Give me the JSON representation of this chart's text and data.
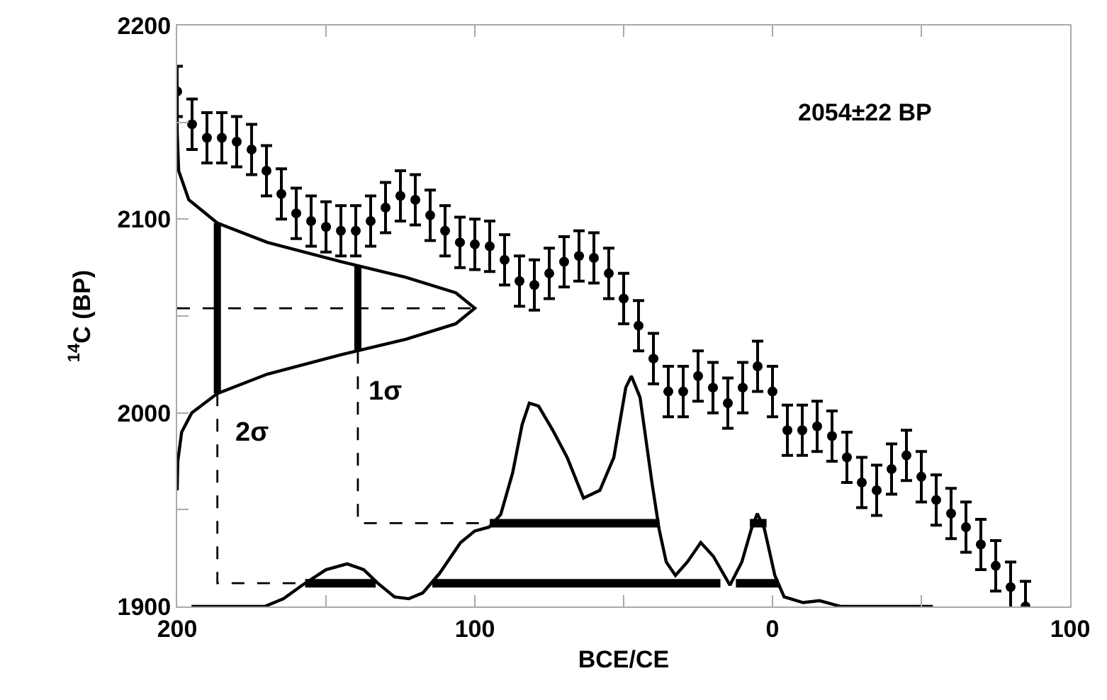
{
  "chart_data": {
    "type": "line",
    "xlabel": "BCE/CE",
    "ylabel": "$^{14}$C (BP)",
    "xlim": [
      -200,
      100
    ],
    "xticks": [
      {
        "value": -200,
        "label": "200"
      },
      {
        "value": -150,
        "label": null
      },
      {
        "value": -100,
        "label": "100"
      },
      {
        "value": -50,
        "label": null
      },
      0,
      {
        "value": 50,
        "label": null
      },
      100
    ],
    "ylim": [
      1900,
      2200
    ],
    "yticks": [
      1900,
      {
        "value": 1950,
        "label": null
      },
      2000,
      {
        "value": 2050,
        "label": null
      },
      2100,
      {
        "value": 2150,
        "label": null
      },
      2200
    ],
    "grid": false,
    "annotations": [
      "2054±22 BP",
      "1σ",
      "2σ"
    ],
    "series": [
      {
        "type": "scatter",
        "marker": "circle",
        "color": "#000000",
        "x": [
          -200,
          -195,
          -190,
          -185,
          -180,
          -175,
          -170,
          -165,
          -160,
          -155,
          -150,
          -145,
          -140,
          -135,
          -130,
          -125,
          -120,
          -115,
          -110,
          -105,
          -100,
          -95,
          -90,
          -85,
          -80,
          -75,
          -70,
          -65,
          -60,
          -55,
          -50,
          -45,
          -40,
          -35,
          -30,
          -25,
          -20,
          -15,
          -10,
          -5,
          0,
          5,
          10,
          15,
          20,
          25,
          30,
          35,
          40,
          45,
          50,
          55,
          60,
          65,
          70,
          75,
          80,
          85
        ],
        "values": [
          2166,
          2149,
          2142,
          2142,
          2140,
          2136,
          2125,
          2113,
          2103,
          2099,
          2096,
          2094,
          2094,
          2099,
          2106,
          2112,
          2110,
          2102,
          2094,
          2088,
          2087,
          2086,
          2079,
          2068,
          2066,
          2072,
          2078,
          2081,
          2080,
          2072,
          2059,
          2045,
          2028,
          2011,
          2011,
          2019,
          2013,
          2005,
          2013,
          2024,
          2011,
          1991,
          1991,
          1993,
          1988,
          1977,
          1964,
          1960,
          1971,
          1978,
          1967,
          1955,
          1948,
          1941,
          1932,
          1921,
          1910,
          1900
        ],
        "errors": [
          13,
          13,
          13,
          13,
          13,
          13,
          13,
          13,
          13,
          13,
          13,
          13,
          13,
          13,
          13,
          13,
          13,
          13,
          13,
          13,
          13,
          13,
          13,
          13,
          13,
          13,
          13,
          13,
          13,
          13,
          13,
          13,
          13,
          13,
          13,
          13,
          13,
          13,
          13,
          13,
          13,
          13,
          13,
          13,
          13,
          13,
          13,
          13,
          13,
          13,
          13,
          13,
          13,
          13,
          13,
          13,
          13,
          13
        ]
      },
      {
        "line_style": "solid",
        "color": "#000000",
        "x": [
          -200,
          -199.8,
          -198.5,
          -195.1,
          -186.5,
          -169.7,
          -144.9,
          -123.2,
          -106.4,
          -100,
          -106.4,
          -123.2,
          -144.9,
          -169.7,
          -186.5,
          -196.1,
          -199.5,
          -200,
          -200
        ],
        "values": [
          1960,
          1975,
          1990,
          2000,
          2010,
          2020,
          2030,
          2038,
          2046,
          2054,
          2062,
          2070,
          2078,
          2088,
          2098,
          2110,
          2125,
          2145,
          2165
        ]
      },
      {
        "line_style": "solid",
        "color": "#000000",
        "x": [
          -195.2,
          -170.6,
          -164.3,
          -158,
          -150,
          -142.9,
          -137.3,
          -132.6,
          -127,
          -122.2,
          -117.5,
          -111.9,
          -104.8,
          -100,
          -95.2,
          -91.3,
          -87.3,
          -84.1,
          -81.7,
          -78.6,
          -73.8,
          -69,
          -63.5,
          -58,
          -53.3,
          -49.3,
          -47.4,
          -44.5,
          -40.5,
          -38.1,
          -35.7,
          -32.6,
          -28.6,
          -24.1,
          -19.9,
          -14.3,
          -10.3,
          -7.1,
          -5.1,
          -2.7,
          0.8,
          3.9,
          10.3,
          15.8,
          23,
          53.9
        ],
        "values": [
          1900,
          1900,
          1904,
          1911,
          1919,
          1922,
          1919,
          1912,
          1905,
          1904,
          1907,
          1917,
          1933,
          1939,
          1941,
          1947.5,
          1969,
          1994,
          2005,
          2003.5,
          1991,
          1977,
          1956,
          1960,
          1977,
          2013,
          2019,
          2008,
          1964,
          1940,
          1923,
          1916,
          1923,
          1933,
          1926,
          1911,
          1923,
          1940,
          1948,
          1940,
          1916,
          1905,
          1902,
          1903,
          1900,
          1900
        ]
      },
      {
        "line_style": "dashed",
        "color": "#000000",
        "x": [
          -200,
          -100
        ],
        "values": [
          2054,
          2054
        ]
      },
      {
        "line_style": "dashed",
        "color": "#000000",
        "x": [
          -186.5,
          -186.5,
          -157
        ],
        "values": [
          2010,
          1912,
          1912
        ]
      },
      {
        "line_style": "dashed",
        "color": "#000000",
        "x": [
          -139.3,
          -139.3,
          -95
        ],
        "values": [
          2032,
          1943,
          1943
        ]
      },
      {
        "type": "bar",
        "color": "#000000",
        "x": [
          -186.5,
          -139.3
        ],
        "base": [
          2010,
          2032
        ],
        "values": [
          88,
          44
        ]
      },
      {
        "line_style": "solid",
        "color": "#000000",
        "x": [
          -95,
          -38,
          -20,
          -7.6,
          -2
        ],
        "values": [
          1943,
          1943,
          null,
          1943,
          1943
        ]
      },
      {
        "line_style": "solid",
        "color": "#000000",
        "x": [
          -157,
          -133.3,
          -125,
          -114.3,
          -17.5,
          -15,
          -12.3,
          2
        ],
        "values": [
          1912,
          1912,
          null,
          1912,
          1912,
          null,
          1912,
          1912
        ]
      }
    ]
  }
}
